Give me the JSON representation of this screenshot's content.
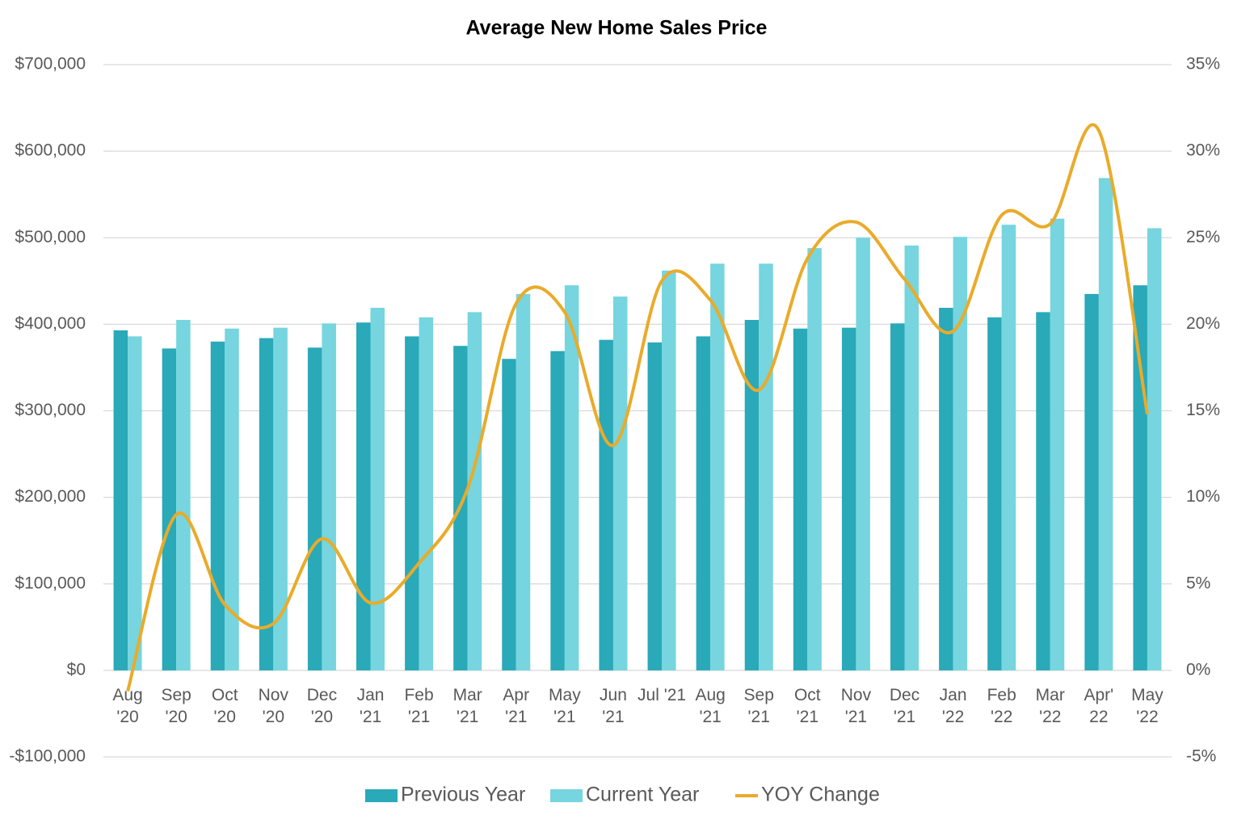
{
  "chart_data": {
    "type": "bar_line",
    "title": "Average New Home Sales Price",
    "categories": [
      "Aug\n'20",
      "Sep\n'20",
      "Oct\n'20",
      "Nov\n'20",
      "Dec\n'20",
      "Jan\n'21",
      "Feb\n'21",
      "Mar\n'21",
      "Apr\n'21",
      "May\n'21",
      "Jun\n'21",
      "Jul '21",
      "Aug\n'21",
      "Sep\n'21",
      "Oct\n'21",
      "Nov\n'21",
      "Dec\n'21",
      "Jan\n'22",
      "Feb\n'22",
      "Mar\n'22",
      "Apr'\n22",
      "May\n'22"
    ],
    "series": [
      {
        "name": "Previous Year",
        "color": "#2aa9b8",
        "values": [
          393000,
          372000,
          380000,
          384000,
          373000,
          402000,
          386000,
          375000,
          360000,
          369000,
          382000,
          379000,
          386000,
          405000,
          395000,
          396000,
          401000,
          419000,
          408000,
          414000,
          435000,
          445000
        ]
      },
      {
        "name": "Current Year",
        "color": "#76d5de",
        "values": [
          386000,
          405000,
          395000,
          396000,
          401000,
          419000,
          408000,
          414000,
          435000,
          445000,
          432000,
          462000,
          470000,
          470000,
          488000,
          500000,
          491000,
          501000,
          515000,
          522000,
          569000,
          511000
        ]
      },
      {
        "name": "YOY Change",
        "color": "#e9ab2a",
        "axis": "y2",
        "values": [
          -1.2,
          9.0,
          3.8,
          2.7,
          7.6,
          3.9,
          6.2,
          10.5,
          21.2,
          20.7,
          13.0,
          22.5,
          21.4,
          16.2,
          23.8,
          25.9,
          22.6,
          19.6,
          26.3,
          25.8,
          31.2,
          14.8
        ]
      }
    ],
    "ylim": [
      -100000,
      700000
    ],
    "yticks": [
      {
        "value": -100000,
        "label": "-$100,000"
      },
      {
        "value": 0,
        "label": "$0"
      },
      {
        "value": 100000,
        "label": "$100,000"
      },
      {
        "value": 200000,
        "label": "$200,000"
      },
      {
        "value": 300000,
        "label": "$300,000"
      },
      {
        "value": 400000,
        "label": "$400,000"
      },
      {
        "value": 500000,
        "label": "$500,000"
      },
      {
        "value": 600000,
        "label": "$600,000"
      },
      {
        "value": 700000,
        "label": "$700,000"
      }
    ],
    "y2lim": [
      -5,
      35
    ],
    "y2ticks": [
      {
        "value": -5,
        "label": "-5%"
      },
      {
        "value": 0,
        "label": "0%"
      },
      {
        "value": 5,
        "label": "5%"
      },
      {
        "value": 10,
        "label": "10%"
      },
      {
        "value": 15,
        "label": "15%"
      },
      {
        "value": 20,
        "label": "20%"
      },
      {
        "value": 25,
        "label": "25%"
      },
      {
        "value": 30,
        "label": "30%"
      },
      {
        "value": 35,
        "label": "35%"
      }
    ],
    "grid": true,
    "legend": "bottom"
  }
}
